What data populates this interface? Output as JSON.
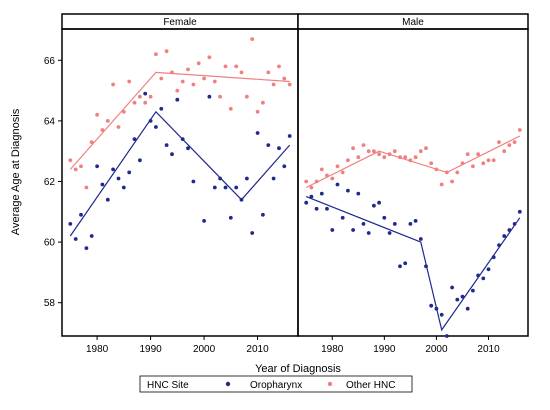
{
  "chart_data": {
    "type": "scatter",
    "xlabel": "Year of Diagnosis",
    "ylabel": "Average Age at Diagnosis",
    "xlim": [
      1974,
      2017
    ],
    "ylim": [
      56.9,
      67.0
    ],
    "x_ticks": [
      "1980",
      "1990",
      "2000",
      "2010"
    ],
    "y_ticks": [
      "58",
      "60",
      "62",
      "64",
      "66"
    ],
    "legend": {
      "title": "HNC Site",
      "placement": "bottom",
      "entries": [
        "Oropharynx",
        "Other HNC"
      ]
    },
    "colors": {
      "Oropharynx": "#1f2a8c",
      "Other HNC": "#f08080"
    },
    "grid": false,
    "panels": [
      {
        "label": "Female",
        "series": [
          {
            "name": "Oropharynx",
            "points": [
              [
                1975,
                60.6
              ],
              [
                1976,
                60.1
              ],
              [
                1977,
                60.9
              ],
              [
                1978,
                59.8
              ],
              [
                1979,
                60.2
              ],
              [
                1980,
                62.5
              ],
              [
                1981,
                61.9
              ],
              [
                1982,
                61.4
              ],
              [
                1983,
                62.4
              ],
              [
                1984,
                62.1
              ],
              [
                1985,
                61.8
              ],
              [
                1986,
                62.3
              ],
              [
                1987,
                63.4
              ],
              [
                1988,
                62.7
              ],
              [
                1989,
                64.9
              ],
              [
                1990,
                64.0
              ],
              [
                1991,
                63.8
              ],
              [
                1992,
                64.4
              ],
              [
                1993,
                63.2
              ],
              [
                1994,
                62.9
              ],
              [
                1995,
                64.7
              ],
              [
                1996,
                63.4
              ],
              [
                1997,
                63.1
              ],
              [
                1998,
                62.0
              ],
              [
                2000,
                60.7
              ],
              [
                2001,
                64.8
              ],
              [
                2002,
                61.8
              ],
              [
                2003,
                62.1
              ],
              [
                2004,
                61.8
              ],
              [
                2005,
                60.8
              ],
              [
                2006,
                61.8
              ],
              [
                2007,
                61.4
              ],
              [
                2008,
                62.1
              ],
              [
                2009,
                60.3
              ],
              [
                2010,
                63.6
              ],
              [
                2011,
                60.9
              ],
              [
                2012,
                63.2
              ],
              [
                2013,
                62.1
              ],
              [
                2014,
                63.1
              ],
              [
                2015,
                62.5
              ],
              [
                2016,
                63.5
              ]
            ],
            "trend": [
              [
                1975,
                60.2
              ],
              [
                1991,
                64.3
              ],
              [
                2007,
                61.4
              ],
              [
                2016,
                63.2
              ]
            ]
          },
          {
            "name": "Other HNC",
            "points": [
              [
                1975,
                62.7
              ],
              [
                1976,
                62.4
              ],
              [
                1977,
                62.5
              ],
              [
                1978,
                61.8
              ],
              [
                1979,
                63.3
              ],
              [
                1980,
                64.2
              ],
              [
                1981,
                63.7
              ],
              [
                1982,
                64.0
              ],
              [
                1983,
                65.2
              ],
              [
                1984,
                63.8
              ],
              [
                1985,
                64.3
              ],
              [
                1986,
                65.3
              ],
              [
                1987,
                64.6
              ],
              [
                1988,
                64.8
              ],
              [
                1989,
                64.6
              ],
              [
                1990,
                64.8
              ],
              [
                1991,
                66.2
              ],
              [
                1992,
                65.4
              ],
              [
                1993,
                66.3
              ],
              [
                1994,
                65.6
              ],
              [
                1995,
                65.0
              ],
              [
                1996,
                65.3
              ],
              [
                1997,
                65.7
              ],
              [
                1998,
                65.2
              ],
              [
                1999,
                65.9
              ],
              [
                2000,
                65.4
              ],
              [
                2001,
                66.1
              ],
              [
                2002,
                65.3
              ],
              [
                2003,
                64.8
              ],
              [
                2004,
                65.8
              ],
              [
                2005,
                64.4
              ],
              [
                2006,
                65.8
              ],
              [
                2007,
                65.6
              ],
              [
                2008,
                64.8
              ],
              [
                2009,
                66.7
              ],
              [
                2010,
                64.3
              ],
              [
                2011,
                64.6
              ],
              [
                2012,
                65.6
              ],
              [
                2013,
                65.2
              ],
              [
                2014,
                65.8
              ],
              [
                2015,
                65.4
              ],
              [
                2016,
                65.2
              ]
            ],
            "trend": [
              [
                1975,
                62.4
              ],
              [
                1991,
                65.6
              ],
              [
                2016,
                65.3
              ]
            ]
          }
        ]
      },
      {
        "label": "Male",
        "series": [
          {
            "name": "Oropharynx",
            "points": [
              [
                1975,
                61.3
              ],
              [
                1976,
                61.5
              ],
              [
                1977,
                61.1
              ],
              [
                1978,
                61.6
              ],
              [
                1979,
                61.1
              ],
              [
                1980,
                60.4
              ],
              [
                1981,
                61.9
              ],
              [
                1982,
                60.8
              ],
              [
                1983,
                61.7
              ],
              [
                1984,
                60.4
              ],
              [
                1985,
                61.6
              ],
              [
                1986,
                60.6
              ],
              [
                1987,
                60.3
              ],
              [
                1988,
                61.2
              ],
              [
                1989,
                61.3
              ],
              [
                1990,
                60.8
              ],
              [
                1991,
                60.3
              ],
              [
                1992,
                60.6
              ],
              [
                1993,
                59.2
              ],
              [
                1994,
                59.3
              ],
              [
                1995,
                60.6
              ],
              [
                1996,
                60.7
              ],
              [
                1997,
                60.1
              ],
              [
                1998,
                59.2
              ],
              [
                1999,
                57.9
              ],
              [
                2000,
                57.8
              ],
              [
                2001,
                57.6
              ],
              [
                2002,
                56.9
              ],
              [
                2003,
                58.5
              ],
              [
                2004,
                58.1
              ],
              [
                2005,
                58.2
              ],
              [
                2006,
                57.8
              ],
              [
                2007,
                58.4
              ],
              [
                2008,
                58.9
              ],
              [
                2009,
                58.8
              ],
              [
                2010,
                59.1
              ],
              [
                2011,
                59.5
              ],
              [
                2012,
                59.9
              ],
              [
                2013,
                60.2
              ],
              [
                2014,
                60.4
              ],
              [
                2015,
                60.6
              ],
              [
                2016,
                61.0
              ]
            ],
            "trend": [
              [
                1975,
                61.5
              ],
              [
                1997,
                60.0
              ],
              [
                2001,
                57.1
              ],
              [
                2016,
                60.8
              ]
            ]
          },
          {
            "name": "Other HNC",
            "points": [
              [
                1975,
                62.0
              ],
              [
                1976,
                61.8
              ],
              [
                1977,
                62.0
              ],
              [
                1978,
                62.4
              ],
              [
                1979,
                62.2
              ],
              [
                1980,
                62.1
              ],
              [
                1981,
                62.5
              ],
              [
                1982,
                62.3
              ],
              [
                1983,
                62.7
              ],
              [
                1984,
                63.1
              ],
              [
                1985,
                62.8
              ],
              [
                1986,
                63.2
              ],
              [
                1987,
                63.0
              ],
              [
                1988,
                63.0
              ],
              [
                1989,
                62.9
              ],
              [
                1990,
                62.8
              ],
              [
                1991,
                62.9
              ],
              [
                1992,
                63.0
              ],
              [
                1993,
                62.8
              ],
              [
                1994,
                62.8
              ],
              [
                1995,
                62.7
              ],
              [
                1996,
                62.8
              ],
              [
                1997,
                63.0
              ],
              [
                1998,
                63.1
              ],
              [
                1999,
                62.6
              ],
              [
                2000,
                62.4
              ],
              [
                2001,
                61.9
              ],
              [
                2002,
                62.3
              ],
              [
                2003,
                62.0
              ],
              [
                2004,
                62.3
              ],
              [
                2005,
                62.6
              ],
              [
                2006,
                62.9
              ],
              [
                2007,
                62.5
              ],
              [
                2008,
                62.9
              ],
              [
                2009,
                62.6
              ],
              [
                2010,
                62.7
              ],
              [
                2011,
                62.7
              ],
              [
                2012,
                63.3
              ],
              [
                2013,
                63.0
              ],
              [
                2014,
                63.2
              ],
              [
                2015,
                63.3
              ],
              [
                2016,
                63.7
              ]
            ],
            "trend": [
              [
                1975,
                61.8
              ],
              [
                1989,
                63.0
              ],
              [
                2002,
                62.3
              ],
              [
                2016,
                63.5
              ]
            ]
          }
        ]
      }
    ]
  }
}
